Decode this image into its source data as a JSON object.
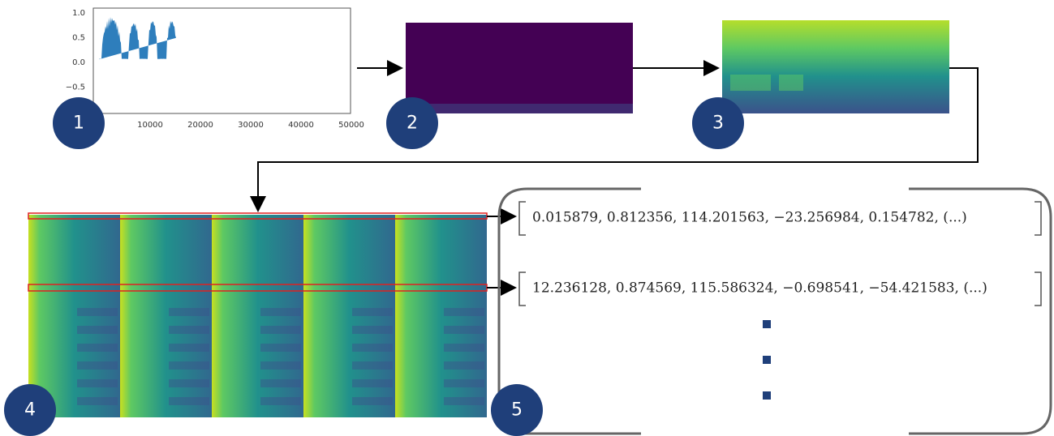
{
  "steps": [
    {
      "label": "1"
    },
    {
      "label": "2"
    },
    {
      "label": "3"
    },
    {
      "label": "4"
    },
    {
      "label": "5"
    }
  ],
  "waveform": {
    "yticks": [
      "1.0",
      "0.5",
      "0.0",
      "−0.5"
    ],
    "xticks": [
      "10000",
      "20000",
      "30000",
      "40000",
      "50000"
    ]
  },
  "vectors": [
    "0.015879, 0.812356, 114.201563, −23.256984, 0.154782, (...)",
    "12.236128, 0.874569, 115.586324, −0.698541, −54.421583, (...)"
  ]
}
